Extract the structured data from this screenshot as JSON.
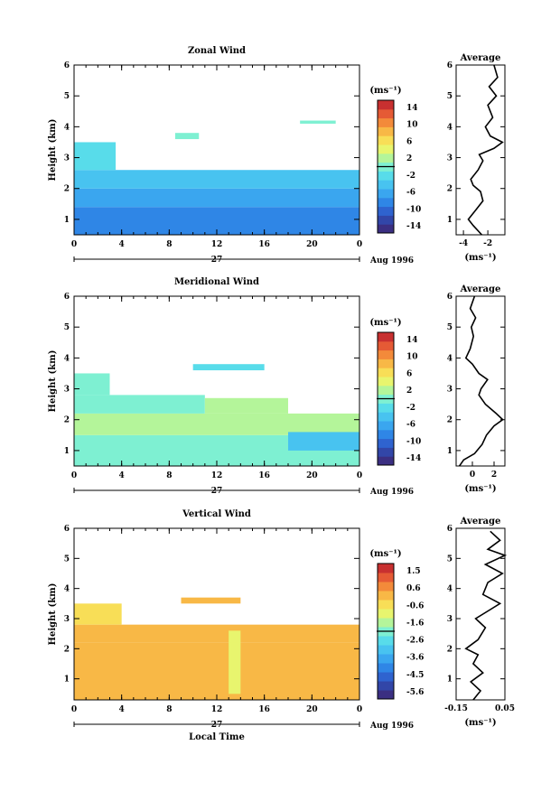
{
  "chart_data": [
    {
      "type": "heatmap",
      "title": "Zonal Wind",
      "ylabel": "Height (km)",
      "x_ticks": [
        "0",
        "4",
        "8",
        "12",
        "16",
        "20",
        "0"
      ],
      "y_ticks": [
        "1",
        "2",
        "3",
        "4",
        "5",
        "6"
      ],
      "ylim": [
        0.5,
        6
      ],
      "xlim": [
        0,
        24
      ],
      "day_label": "27",
      "date_label": "Aug 1996",
      "colorbar": {
        "unit": "(ms⁻¹)",
        "tick_labels": [
          "14",
          "10",
          "6",
          "2",
          "-2",
          "-6",
          "-10",
          "-14"
        ],
        "range": [
          -16,
          16
        ],
        "colors": [
          "#3b2f82",
          "#3246a8",
          "#2f63cf",
          "#2f86e6",
          "#3aa6ef",
          "#48c3f0",
          "#58dcea",
          "#7ef0d2",
          "#b4f59a",
          "#e8f56e",
          "#f8de57",
          "#f8b846",
          "#f38a3a",
          "#e55a35",
          "#c83030"
        ]
      },
      "regions": [
        {
          "x0": 0,
          "x1": 24,
          "y0": 0.5,
          "y1": 1.4,
          "value": -9
        },
        {
          "x0": 0,
          "x1": 24,
          "y0": 1.4,
          "y1": 2.0,
          "value": -7
        },
        {
          "x0": 0,
          "x1": 24,
          "y0": 2.0,
          "y1": 2.6,
          "value": -4
        },
        {
          "x0": 0,
          "x1": 3.5,
          "y0": 2.6,
          "y1": 3.5,
          "value": -2
        },
        {
          "x0": 8.5,
          "x1": 10.5,
          "y0": 3.6,
          "y1": 3.8,
          "value": -1
        },
        {
          "x0": 19,
          "x1": 22,
          "y0": 4.1,
          "y1": 4.2,
          "value": 0
        }
      ],
      "average": {
        "title": "Average",
        "xlabel": "(ms⁻¹)",
        "x_ticks": [
          "-4",
          "-2"
        ],
        "xlim": [
          -4.6,
          -0.6
        ],
        "y_ticks": [
          "1",
          "2",
          "3",
          "4",
          "5",
          "6"
        ],
        "ylim": [
          0.5,
          6
        ],
        "profile": [
          [
            -2.5,
            0.5
          ],
          [
            -3.2,
            0.8
          ],
          [
            -3.6,
            1.0
          ],
          [
            -3.0,
            1.3
          ],
          [
            -2.4,
            1.6
          ],
          [
            -2.6,
            1.9
          ],
          [
            -3.2,
            2.1
          ],
          [
            -3.4,
            2.3
          ],
          [
            -2.8,
            2.6
          ],
          [
            -2.4,
            2.9
          ],
          [
            -2.7,
            3.1
          ],
          [
            -1.5,
            3.3
          ],
          [
            -0.8,
            3.5
          ],
          [
            -1.8,
            3.7
          ],
          [
            -2.2,
            4.0
          ],
          [
            -1.6,
            4.3
          ],
          [
            -2.0,
            4.7
          ],
          [
            -1.3,
            5.0
          ],
          [
            -1.9,
            5.3
          ],
          [
            -1.2,
            5.6
          ],
          [
            -1.5,
            6.0
          ]
        ]
      }
    },
    {
      "type": "heatmap",
      "title": "Meridional Wind",
      "ylabel": "Height (km)",
      "x_ticks": [
        "0",
        "4",
        "8",
        "12",
        "16",
        "20",
        "0"
      ],
      "y_ticks": [
        "1",
        "2",
        "3",
        "4",
        "5",
        "6"
      ],
      "ylim": [
        0.5,
        6
      ],
      "xlim": [
        0,
        24
      ],
      "day_label": "27",
      "date_label": "Aug 1996",
      "colorbar": {
        "unit": "(ms⁻¹)",
        "tick_labels": [
          "14",
          "10",
          "6",
          "2",
          "-2",
          "-6",
          "-10",
          "-14"
        ],
        "range": [
          -16,
          16
        ],
        "colors": [
          "#3b2f82",
          "#3246a8",
          "#2f63cf",
          "#2f86e6",
          "#3aa6ef",
          "#48c3f0",
          "#58dcea",
          "#7ef0d2",
          "#b4f59a",
          "#e8f56e",
          "#f8de57",
          "#f8b846",
          "#f38a3a",
          "#e55a35",
          "#c83030"
        ]
      },
      "regions": [
        {
          "x0": 0,
          "x1": 24,
          "y0": 0.5,
          "y1": 1.5,
          "value": 1
        },
        {
          "x0": 0,
          "x1": 24,
          "y0": 1.5,
          "y1": 2.2,
          "value": 2
        },
        {
          "x0": 0,
          "x1": 11,
          "y0": 2.2,
          "y1": 2.8,
          "value": 0
        },
        {
          "x0": 11,
          "x1": 18,
          "y0": 2.2,
          "y1": 2.7,
          "value": 3
        },
        {
          "x0": 0,
          "x1": 3,
          "y0": 2.8,
          "y1": 3.5,
          "value": -1
        },
        {
          "x0": 10,
          "x1": 16,
          "y0": 3.6,
          "y1": 3.8,
          "value": -2
        },
        {
          "x0": 18,
          "x1": 24,
          "y0": 1.0,
          "y1": 1.6,
          "value": -4
        }
      ],
      "average": {
        "title": "Average",
        "xlabel": "(ms⁻¹)",
        "x_ticks": [
          "0",
          "2"
        ],
        "xlim": [
          -1.5,
          3.0
        ],
        "y_ticks": [
          "1",
          "2",
          "3",
          "4",
          "5",
          "6"
        ],
        "ylim": [
          0.5,
          6
        ],
        "profile": [
          [
            -1.2,
            0.5
          ],
          [
            -0.8,
            0.7
          ],
          [
            0.2,
            0.9
          ],
          [
            0.9,
            1.2
          ],
          [
            1.3,
            1.5
          ],
          [
            2.0,
            1.8
          ],
          [
            2.8,
            2.0
          ],
          [
            2.2,
            2.2
          ],
          [
            1.2,
            2.5
          ],
          [
            0.6,
            2.8
          ],
          [
            0.8,
            3.0
          ],
          [
            1.4,
            3.3
          ],
          [
            0.6,
            3.5
          ],
          [
            0.0,
            3.8
          ],
          [
            -0.6,
            4.0
          ],
          [
            -0.2,
            4.3
          ],
          [
            0.1,
            4.7
          ],
          [
            -0.1,
            5.0
          ],
          [
            0.3,
            5.3
          ],
          [
            -0.2,
            5.6
          ],
          [
            0.2,
            6.0
          ]
        ]
      }
    },
    {
      "type": "heatmap",
      "title": "Vertical Wind",
      "ylabel": "Height (km)",
      "xlabel": "Local Time",
      "x_ticks": [
        "0",
        "4",
        "8",
        "12",
        "16",
        "20",
        "0"
      ],
      "y_ticks": [
        "1",
        "2",
        "3",
        "4",
        "5",
        "6"
      ],
      "ylim": [
        0.3,
        6
      ],
      "xlim": [
        0,
        24
      ],
      "day_label": "27",
      "date_label": "Aug 1996",
      "colorbar": {
        "unit": "(ms⁻¹)",
        "tick_labels": [
          "1.5",
          "0.6",
          "-0.6",
          "-1.6",
          "-2.6",
          "-3.6",
          "-4.5",
          "-5.6"
        ],
        "range": [
          -6.0,
          2.0
        ],
        "colors": [
          "#3b2f82",
          "#3246a8",
          "#2f63cf",
          "#2f86e6",
          "#3aa6ef",
          "#48c3f0",
          "#58dcea",
          "#7ef0d2",
          "#b4f59a",
          "#e8f56e",
          "#f8de57",
          "#f8b846",
          "#f38a3a",
          "#e55a35",
          "#c83030"
        ]
      },
      "regions": [
        {
          "x0": 0,
          "x1": 24,
          "y0": 0.3,
          "y1": 2.2,
          "value": 0.2
        },
        {
          "x0": 0,
          "x1": 24,
          "y0": 2.2,
          "y1": 2.8,
          "value": 0.0
        },
        {
          "x0": 0,
          "x1": 4,
          "y0": 2.8,
          "y1": 3.5,
          "value": -0.2
        },
        {
          "x0": 9,
          "x1": 14,
          "y0": 3.5,
          "y1": 3.7,
          "value": 0.0
        },
        {
          "x0": 13,
          "x1": 14,
          "y0": 0.5,
          "y1": 2.6,
          "value": -1.0
        }
      ],
      "average": {
        "title": "Average",
        "xlabel": "(ms⁻¹)",
        "x_ticks": [
          "-0.15",
          "0.05"
        ],
        "xlim": [
          -0.15,
          0.05
        ],
        "y_ticks": [
          "1",
          "2",
          "3",
          "4",
          "5",
          "6"
        ],
        "ylim": [
          0.3,
          6
        ],
        "profile": [
          [
            -0.08,
            0.3
          ],
          [
            -0.05,
            0.6
          ],
          [
            -0.09,
            0.9
          ],
          [
            -0.04,
            1.2
          ],
          [
            -0.08,
            1.5
          ],
          [
            -0.06,
            1.8
          ],
          [
            -0.11,
            2.0
          ],
          [
            -0.06,
            2.3
          ],
          [
            -0.03,
            2.7
          ],
          [
            -0.07,
            3.0
          ],
          [
            -0.01,
            3.3
          ],
          [
            0.03,
            3.5
          ],
          [
            -0.04,
            3.8
          ],
          [
            -0.02,
            4.2
          ],
          [
            0.04,
            4.5
          ],
          [
            -0.03,
            4.8
          ],
          [
            0.05,
            5.1
          ],
          [
            -0.02,
            5.3
          ],
          [
            0.03,
            5.6
          ],
          [
            -0.01,
            5.9
          ]
        ]
      }
    }
  ]
}
